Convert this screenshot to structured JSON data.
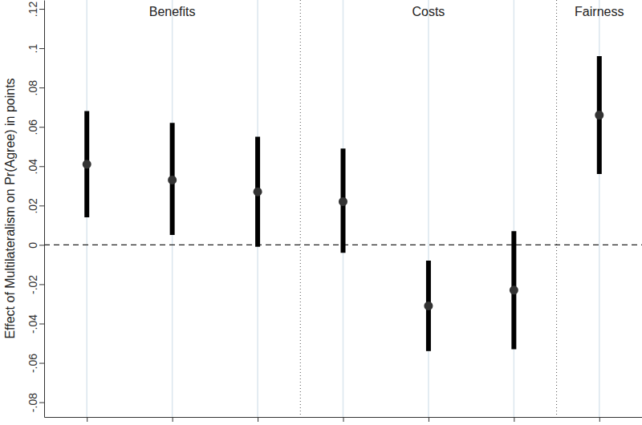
{
  "chart_data": {
    "type": "errorbar",
    "y_label": "Effect of Multilateralism on Pr(Agree) in points",
    "categories": [
      null,
      null,
      null,
      null,
      null,
      null,
      null
    ],
    "groups": [
      "Benefits",
      "Benefits",
      "Benefits",
      "Costs",
      "Costs",
      "Costs",
      "Fairness"
    ],
    "values": [
      0.041,
      0.033,
      0.027,
      0.022,
      -0.031,
      -0.023,
      0.066
    ],
    "ci_lower": [
      0.014,
      0.005,
      -0.001,
      -0.004,
      -0.054,
      -0.053,
      0.036
    ],
    "ci_upper": [
      0.068,
      0.062,
      0.055,
      0.049,
      -0.008,
      0.007,
      0.096
    ],
    "ylim": [
      -0.0875,
      0.1245
    ],
    "yticks": [
      {
        "value": -0.08,
        "label": "-.08"
      },
      {
        "value": -0.06,
        "label": "-.06"
      },
      {
        "value": -0.04,
        "label": "-.04"
      },
      {
        "value": -0.02,
        "label": "-.02"
      },
      0,
      {
        "value": 0.02,
        "label": ".02"
      },
      {
        "value": 0.04,
        "label": ".04"
      },
      {
        "value": 0.06,
        "label": ".06"
      },
      {
        "value": 0.08,
        "label": ".08"
      },
      {
        "value": 0.1,
        "label": ".1"
      },
      {
        "value": 0.12,
        "label": ".12"
      }
    ],
    "hline": 0,
    "grid": true,
    "color": "#333333"
  }
}
